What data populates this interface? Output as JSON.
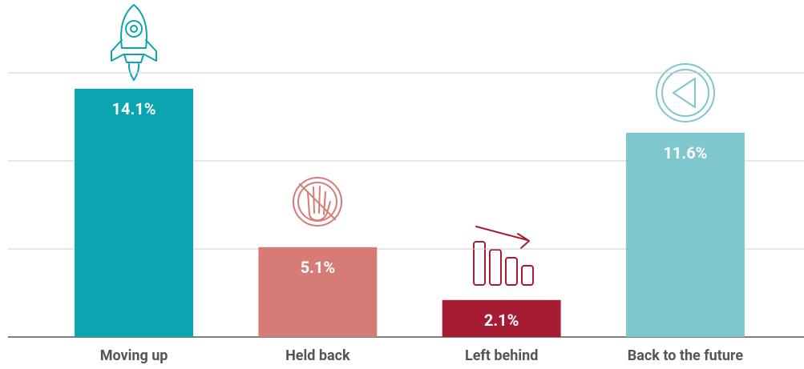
{
  "chart_data": {
    "type": "bar",
    "categories": [
      "Moving up",
      "Held back",
      "Left behind",
      "Back to the future"
    ],
    "values": [
      14.1,
      5.1,
      2.1,
      11.6
    ],
    "value_labels": [
      "14.1%",
      "5.1%",
      "2.1%",
      "11.6%"
    ],
    "colors": [
      "#0aa5ae",
      "#d67b76",
      "#a61c33",
      "#7ec7cf"
    ],
    "ylim": [
      0,
      15
    ],
    "yticks": [
      0,
      5,
      10,
      15
    ],
    "grid": true
  }
}
